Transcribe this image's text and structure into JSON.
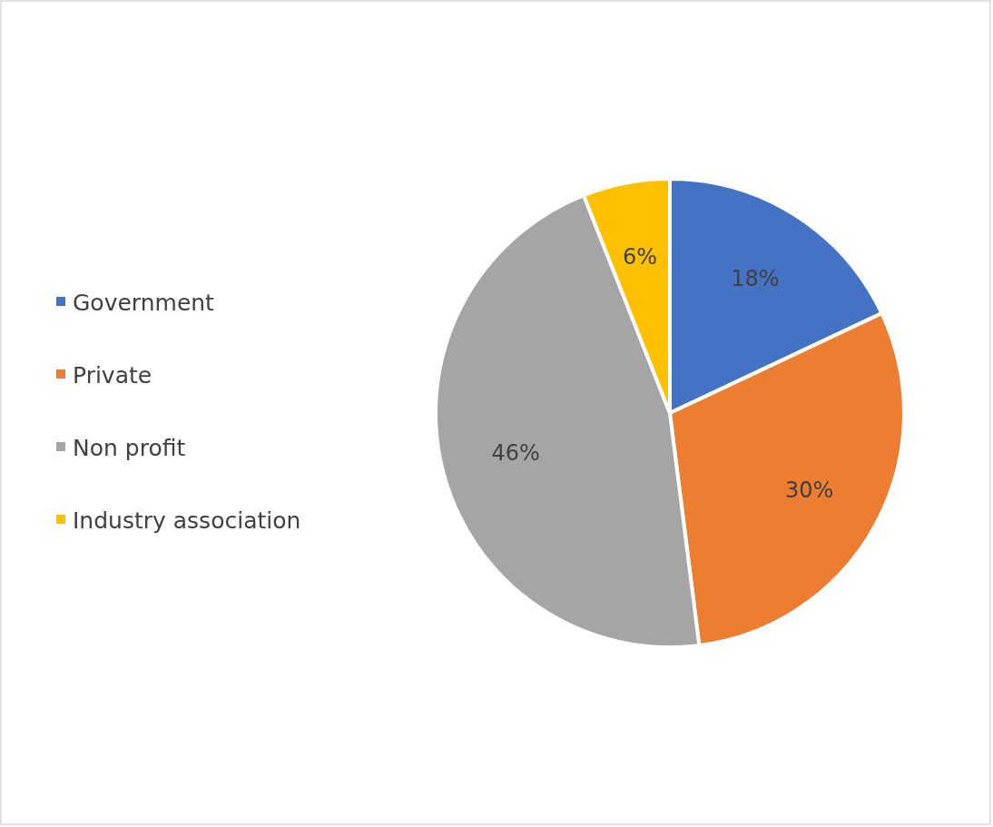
{
  "chart_data": {
    "type": "pie",
    "categories": [
      "Government",
      "Private",
      "Non profit",
      "Industry association"
    ],
    "values": [
      18,
      30,
      46,
      6
    ],
    "colors": [
      "#4472c4",
      "#ed7d31",
      "#a5a5a5",
      "#ffc000"
    ],
    "value_labels": [
      "18%",
      "30%",
      "46%",
      "6%"
    ],
    "legend": "left"
  }
}
